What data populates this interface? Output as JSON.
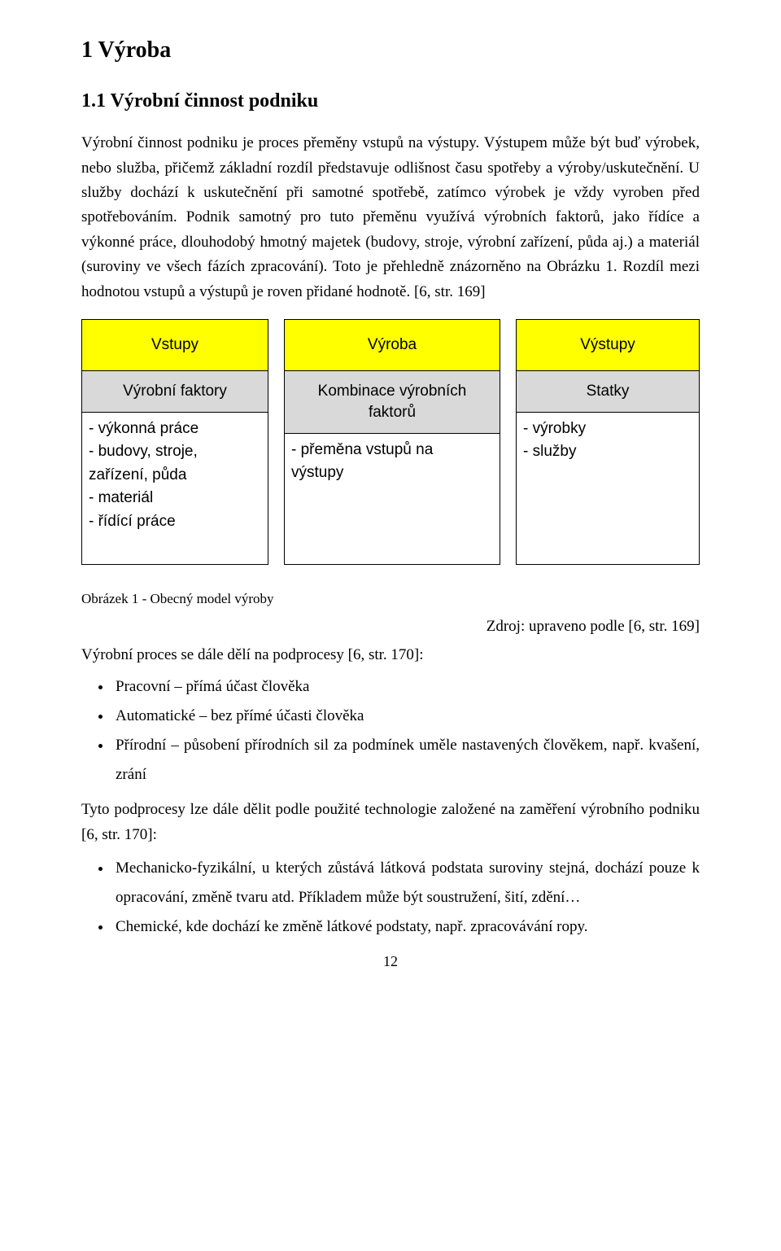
{
  "section": {
    "number_title": "1 Výroba"
  },
  "subsection": {
    "number_title": "1.1 Výrobní činnost podniku"
  },
  "para1": "Výrobní činnost podniku je proces přeměny vstupů na výstupy. Výstupem může být buď výrobek, nebo služba, přičemž základní rozdíl představuje odlišnost času spotřeby a výroby/uskutečnění. U služby dochází k uskutečnění při samotné spotřebě, zatímco výrobek je vždy vyroben před spotřebováním. Podnik samotný pro tuto přeměnu využívá výrobních faktorů, jako řídíce a výkonné práce, dlouhodobý hmotný majetek (budovy, stroje, výrobní zařízení, půda aj.) a materiál (suroviny ve všech fázích zpracování). Toto je přehledně znázorněno na Obrázku 1. Rozdíl mezi hodnotou vstupů a výstupů je roven přidané hodnotě. [6, str. 169]",
  "diagram": {
    "type": "flowchart",
    "header_bg": "#ffff00",
    "sub_bg": "#d9d9d9",
    "body_bg": "#ffffff",
    "border_color": "#000000",
    "font_family": "Arial",
    "font_size_pt": 14,
    "columns": [
      {
        "header": "Vstupy",
        "sub": "Výrobní faktory",
        "body_lines": [
          "- výkonná práce",
          "- budovy, stroje,",
          "zařízení, půda",
          "- materiál",
          "- řídící práce"
        ]
      },
      {
        "header": "Výroba",
        "sub": "Kombinace výrobních\nfaktorů",
        "body_lines": [
          "- přeměna vstupů na",
          "výstupy"
        ]
      },
      {
        "header": "Výstupy",
        "sub": "Statky",
        "body_lines": [
          "- výrobky",
          "- služby"
        ]
      }
    ]
  },
  "caption": "Obrázek 1 - Obecný model výroby",
  "source": "Zdroj: upraveno podle [6, str. 169]",
  "lead1": "Výrobní proces se dále dělí na podprocesy [6, str. 170]:",
  "bullets1": [
    "Pracovní – přímá účast člověka",
    "Automatické – bez přímé účasti člověka",
    "Přírodní – působení přírodních sil za podmínek uměle nastavených člověkem, např. kvašení, zrání"
  ],
  "para2": "Tyto podprocesy lze dále dělit podle použité technologie založené na zaměření výrobního podniku [6, str. 170]:",
  "bullets2": [
    "Mechanicko-fyzikální, u kterých zůstává látková podstata suroviny stejná, dochází pouze k opracování, změně tvaru atd. Příkladem může být soustružení, šití, zdění…",
    "Chemické, kde dochází ke změně látkové podstaty, např. zpracovávání ropy."
  ],
  "page_number": "12"
}
